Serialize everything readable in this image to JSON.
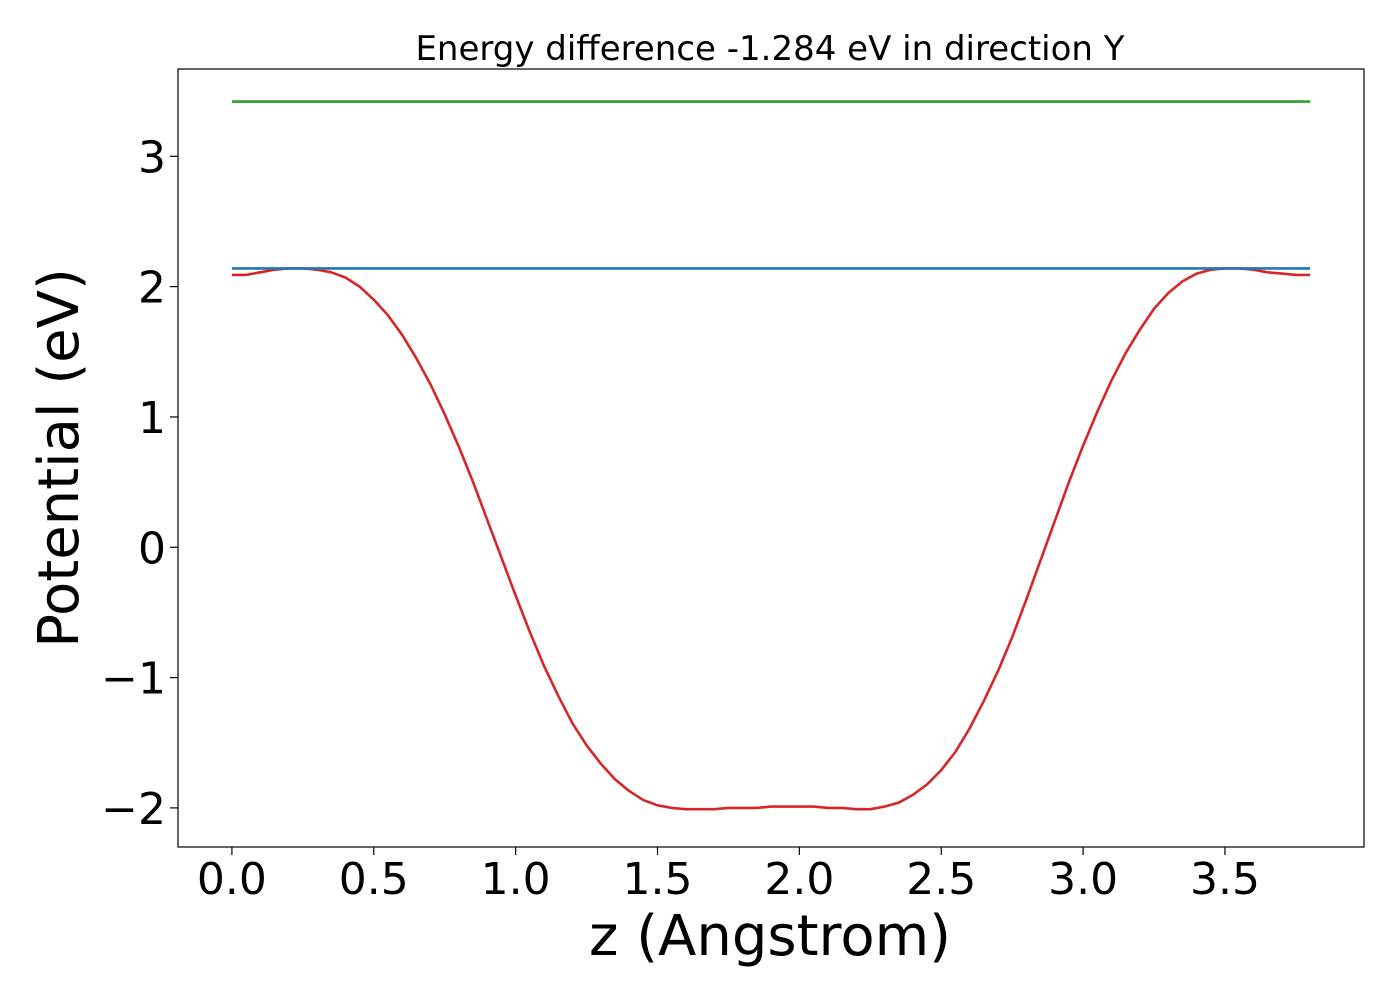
{
  "chart_data": {
    "type": "line",
    "title": "Energy difference -1.284 eV in direction Y",
    "xlabel": "z (Angstrom)",
    "ylabel": "Potential (eV)",
    "xlim": [
      -0.19,
      3.99
    ],
    "ylim": [
      -2.3,
      3.67
    ],
    "xticks": [
      0.0,
      0.5,
      1.0,
      1.5,
      2.0,
      2.5,
      3.0,
      3.5
    ],
    "xtick_labels": [
      "0.0",
      "0.5",
      "1.0",
      "1.5",
      "2.0",
      "2.5",
      "3.0",
      "3.5"
    ],
    "yticks": [
      -2,
      -1,
      0,
      1,
      2,
      3
    ],
    "ytick_labels": [
      "−2",
      "−1",
      "0",
      "1",
      "2",
      "3"
    ],
    "grid": false,
    "legend": "none",
    "series": [
      {
        "color": "#d62728",
        "x": [
          0.0,
          0.05,
          0.1,
          0.15,
          0.2,
          0.25,
          0.3,
          0.35,
          0.4,
          0.45,
          0.5,
          0.55,
          0.6,
          0.65,
          0.7,
          0.75,
          0.8,
          0.85,
          0.9,
          0.95,
          1.0,
          1.05,
          1.1,
          1.15,
          1.2,
          1.25,
          1.3,
          1.35,
          1.4,
          1.45,
          1.5,
          1.55,
          1.6,
          1.65,
          1.7,
          1.75,
          1.8,
          1.85,
          1.9,
          1.95,
          2.0,
          2.05,
          2.1,
          2.15,
          2.2,
          2.25,
          2.3,
          2.35,
          2.4,
          2.45,
          2.5,
          2.55,
          2.6,
          2.65,
          2.7,
          2.75,
          2.8,
          2.85,
          2.9,
          2.95,
          3.0,
          3.05,
          3.1,
          3.15,
          3.2,
          3.25,
          3.3,
          3.35,
          3.4,
          3.45,
          3.5,
          3.55,
          3.6,
          3.65,
          3.7,
          3.75,
          3.8
        ],
        "y": [
          2.09,
          2.09,
          2.11,
          2.13,
          2.14,
          2.14,
          2.13,
          2.11,
          2.07,
          2.0,
          1.9,
          1.78,
          1.63,
          1.45,
          1.25,
          1.02,
          0.77,
          0.5,
          0.21,
          -0.08,
          -0.37,
          -0.65,
          -0.91,
          -1.14,
          -1.35,
          -1.52,
          -1.66,
          -1.78,
          -1.87,
          -1.94,
          -1.98,
          -2.0,
          -2.01,
          -2.01,
          -2.01,
          -2.0,
          -2.0,
          -2.0,
          -1.99,
          -1.99,
          -1.99,
          -1.99,
          -2.0,
          -2.0,
          -2.01,
          -2.01,
          -1.99,
          -1.96,
          -1.9,
          -1.82,
          -1.71,
          -1.57,
          -1.39,
          -1.18,
          -0.95,
          -0.69,
          -0.4,
          -0.1,
          0.2,
          0.5,
          0.78,
          1.04,
          1.28,
          1.49,
          1.67,
          1.83,
          1.95,
          2.04,
          2.1,
          2.13,
          2.14,
          2.14,
          2.13,
          2.11,
          2.1,
          2.09,
          2.09
        ]
      },
      {
        "color": "#1f77b4",
        "x": [
          0.0,
          3.8
        ],
        "y": [
          2.14,
          2.14
        ]
      },
      {
        "color": "#2ca02c",
        "x": [
          0.0,
          3.8
        ],
        "y": [
          3.42,
          3.42
        ]
      }
    ]
  }
}
